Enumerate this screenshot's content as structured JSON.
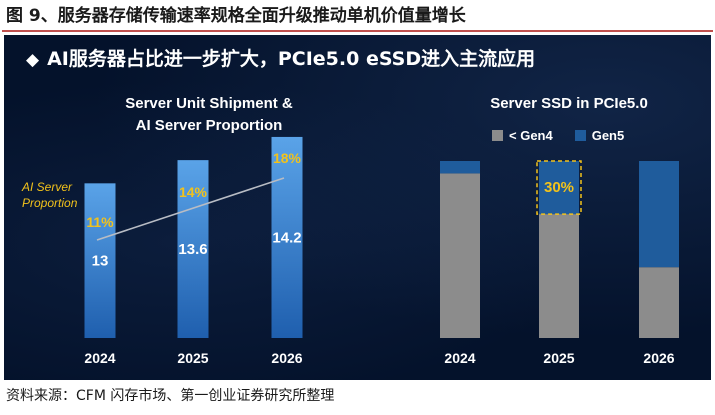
{
  "figure_title": "图 9、服务器存储传输速率规格全面升级推动单机价值量增长",
  "headline": "AI服务器占比进一步扩大，PCIe5.0 eSSD进入主流应用",
  "footnote": "资料来源：CFM 闪存市场、第一创业证券研究所整理",
  "colors": {
    "panel_bg": "#04122b",
    "bar_blue_top": "#5aa3e8",
    "bar_blue_bottom": "#1f5fae",
    "gen4_gray": "#8c8c8c",
    "gen5_blue": "#1f5c9c",
    "highlight_yellow": "#f2c21b",
    "title_rule": "#c0504d"
  },
  "chart_data": [
    {
      "type": "bar",
      "title_line1": "Server Unit Shipment &",
      "title_line2": "AI Server Proportion",
      "categories": [
        "2024",
        "2025",
        "2026"
      ],
      "values": [
        13,
        13.6,
        14.2
      ],
      "value_labels": [
        "13",
        "13.6",
        "14.2"
      ],
      "ylim": [
        0,
        15
      ],
      "overlay_line": {
        "name": "AI Server Proportion",
        "label_line1": "AI Server",
        "label_line2": "Proportion",
        "values": [
          11,
          14,
          18
        ],
        "value_labels": [
          "11%",
          "14%",
          "18%"
        ],
        "ylim": [
          0,
          20
        ]
      }
    },
    {
      "type": "bar",
      "stacked": true,
      "title": "Server SSD in PCIe5.0",
      "categories": [
        "2024",
        "2025",
        "2026"
      ],
      "series": [
        {
          "name": "< Gen4",
          "legend_label": "< Gen4",
          "values": [
            0.93,
            0.7,
            0.4
          ]
        },
        {
          "name": "Gen5",
          "legend_label": "Gen5",
          "values": [
            0.07,
            0.3,
            0.6
          ]
        }
      ],
      "ylim": [
        0,
        1
      ],
      "annotation": {
        "category": "2025",
        "text": "30%"
      }
    }
  ]
}
